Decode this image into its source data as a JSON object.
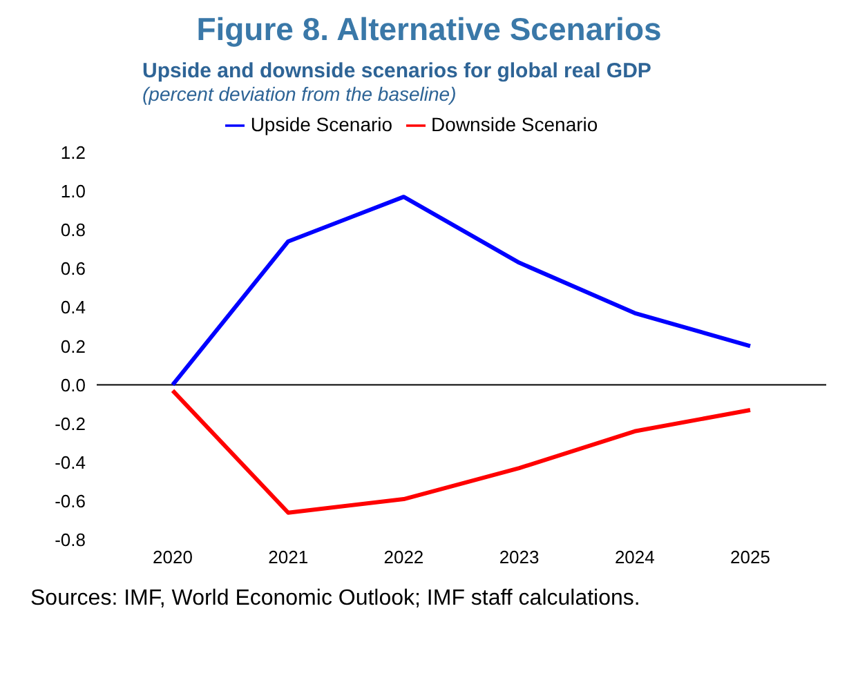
{
  "chart_data": {
    "type": "line",
    "title": "Figure 8. Alternative Scenarios",
    "subtitle": "Upside and downside scenarios for global real GDP",
    "ylabel": "(percent deviation from the baseline)",
    "categories": [
      "2020",
      "2021",
      "2022",
      "2023",
      "2024",
      "2025"
    ],
    "series": [
      {
        "name": "Upside Scenario",
        "color": "#0000ff",
        "values": [
          0.0,
          0.74,
          0.97,
          0.63,
          0.37,
          0.2
        ]
      },
      {
        "name": "Downside Scenario",
        "color": "#ff0000",
        "values": [
          -0.03,
          -0.66,
          -0.59,
          -0.43,
          -0.24,
          -0.13
        ]
      }
    ],
    "ylim": [
      -0.8,
      1.2
    ],
    "yticks": [
      -0.8,
      -0.6,
      -0.4,
      -0.2,
      {
        "value": 0,
        "label": "0.0"
      },
      0.2,
      0.4,
      0.6,
      0.8,
      {
        "value": 1,
        "label": "1.0"
      },
      1.2
    ],
    "ref_lines": [
      {
        "axis": "y",
        "value": 0,
        "color": "#000000"
      }
    ],
    "grid": false,
    "legend": "top",
    "marker": "none",
    "line_style": "solid",
    "annotations": [
      "Sources: IMF, World Economic Outlook; IMF staff calculations."
    ]
  }
}
